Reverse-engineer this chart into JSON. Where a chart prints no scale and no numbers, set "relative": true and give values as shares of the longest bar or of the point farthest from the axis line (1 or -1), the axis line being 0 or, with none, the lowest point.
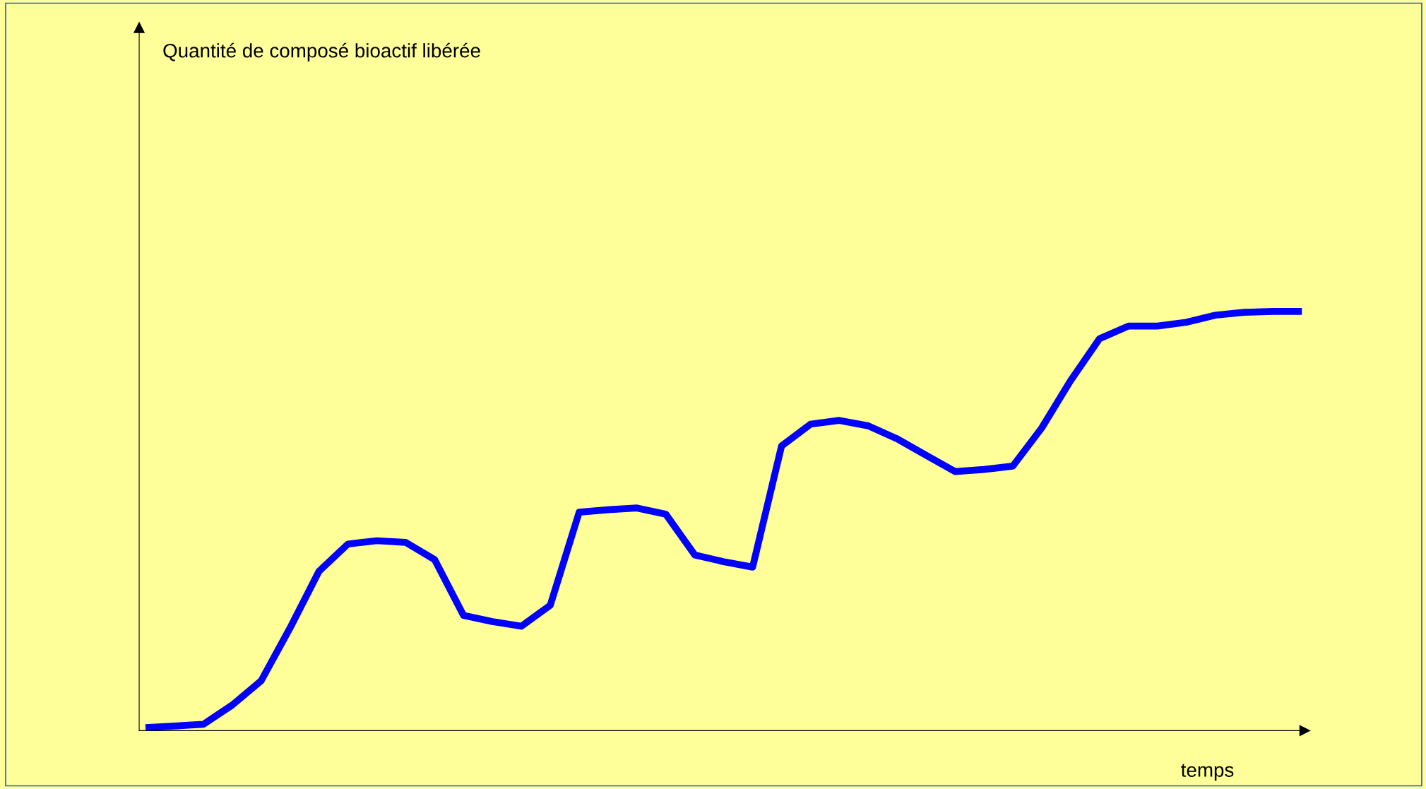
{
  "chart_data": {
    "type": "line",
    "relative": true,
    "annotations": [
      "Quantité de composé bioactif libérée"
    ],
    "xlabel": "temps",
    "categories": [
      null,
      null,
      null,
      null,
      null,
      null,
      null,
      null,
      null,
      null,
      null,
      null,
      null,
      null,
      null,
      null,
      null,
      null,
      null,
      null,
      null,
      null,
      null,
      null,
      null,
      null,
      null,
      null,
      null,
      null,
      null,
      null,
      null,
      null,
      null,
      null,
      null,
      null,
      null,
      null,
      null
    ],
    "series": [
      {
        "color": "#0000ff",
        "values": [
          0.007,
          0.011,
          0.015,
          0.061,
          0.119,
          0.245,
          0.38,
          0.445,
          0.453,
          0.449,
          0.408,
          0.275,
          0.26,
          0.249,
          0.299,
          0.521,
          0.527,
          0.531,
          0.516,
          0.419,
          0.403,
          0.39,
          0.679,
          0.731,
          0.74,
          0.727,
          0.696,
          0.657,
          0.618,
          0.623,
          0.631,
          0.722,
          0.835,
          0.935,
          0.965,
          0.965,
          0.974,
          0.991,
          0.998,
          1.0,
          1.0
        ]
      }
    ],
    "legend": false,
    "marker": "none",
    "line_style": "solid"
  }
}
